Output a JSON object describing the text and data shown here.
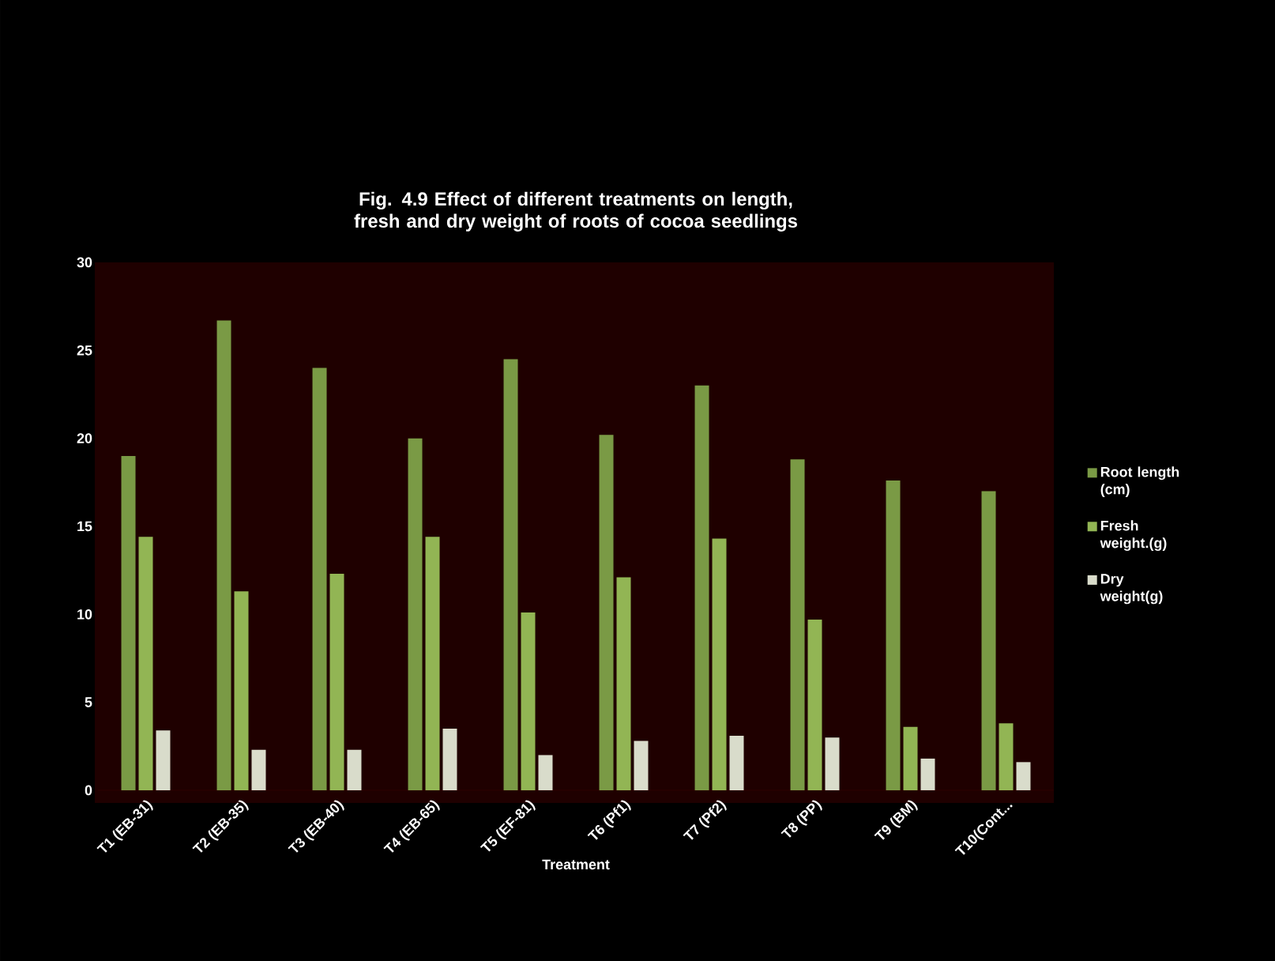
{
  "chart_data": {
    "type": "bar",
    "title": "Fig. 4.9 Effect of different treatments on length, fresh and dry weight of roots of cocoa seedlings",
    "xlabel": "Treatment",
    "categories": [
      "T1 (EB-31)",
      "T2 (EB-35)",
      "T3 (EB-40)",
      "T4 (EB-65)",
      "T5 (EF-81)",
      "T6 (Pf1)",
      "T7 (Pf2)",
      "T8 (PP)",
      "T9 (BM)",
      "T10(Cont..."
    ],
    "series": [
      {
        "name": "Root length (cm)",
        "color": "#7a9a45",
        "values": [
          19,
          26.7,
          24,
          20,
          24.5,
          20.2,
          23,
          18.8,
          17.6,
          17
        ]
      },
      {
        "name": "Fresh weight.(g)",
        "color": "#92b554",
        "values": [
          14.4,
          11.3,
          12.3,
          14.4,
          10.1,
          12.1,
          14.3,
          9.7,
          3.6,
          3.8
        ]
      },
      {
        "name": "Dry weight(g)",
        "color": "#d9dccb",
        "values": [
          3.4,
          2.3,
          2.3,
          3.5,
          2.0,
          2.8,
          3.1,
          3.0,
          1.8,
          1.6
        ]
      }
    ],
    "ylim": [
      0,
      30
    ],
    "yticks": [
      0,
      5,
      10,
      15,
      20,
      25,
      30
    ],
    "grid": false,
    "legend": "right"
  }
}
